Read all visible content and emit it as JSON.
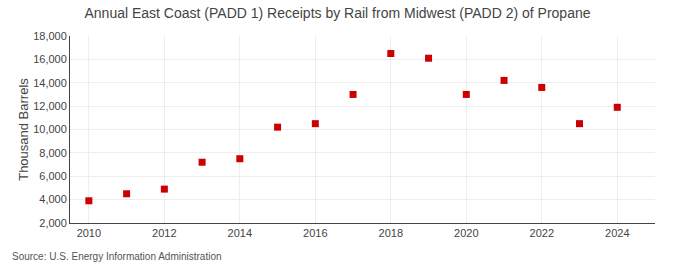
{
  "chart_data": {
    "type": "scatter",
    "title": "Annual East Coast (PADD 1) Receipts by Rail from Midwest (PADD 2) of Propane",
    "ylabel": "Thousand Barrels",
    "annotations": [
      {
        "text": "Source: U.S. Energy Information Administration"
      }
    ],
    "x": [
      2010,
      2011,
      2012,
      2013,
      2014,
      2015,
      2016,
      2017,
      2018,
      2019,
      2020,
      2021,
      2022,
      2023,
      2024
    ],
    "values": [
      3900,
      4500,
      4900,
      7200,
      7500,
      10200,
      10500,
      13000,
      16500,
      16100,
      13000,
      14200,
      13600,
      10500,
      11900
    ],
    "color": "#cc0000",
    "marker": "square",
    "xlim": [
      2009.5,
      2025.0
    ],
    "xticks": [
      2010,
      2012,
      2014,
      2016,
      2018,
      2020,
      2022,
      2024
    ],
    "ylim": [
      2000,
      18000
    ],
    "yticks": [
      {
        "value": 2000,
        "label": "2,000"
      },
      {
        "value": 4000,
        "label": "4,000"
      },
      {
        "value": 6000,
        "label": "6,000"
      },
      {
        "value": 8000,
        "label": "8,000"
      },
      {
        "value": 10000,
        "label": "10,000"
      },
      {
        "value": 12000,
        "label": "12,000"
      },
      {
        "value": 14000,
        "label": "14,000"
      },
      {
        "value": 16000,
        "label": "16,000"
      },
      {
        "value": 18000,
        "label": "18,000"
      }
    ],
    "grid": true
  }
}
